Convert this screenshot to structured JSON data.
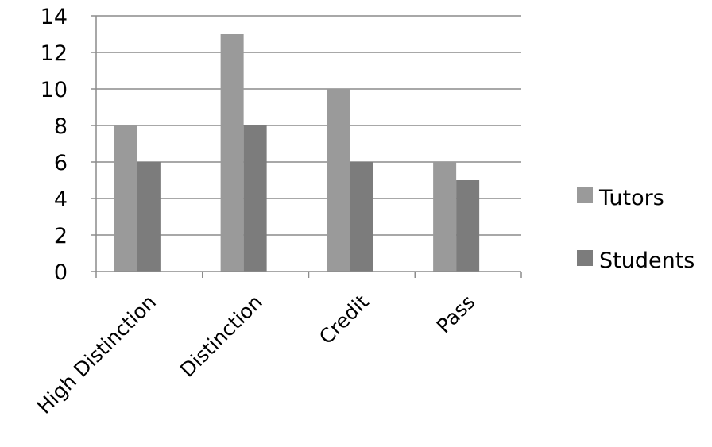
{
  "chart_data": {
    "type": "bar",
    "categories": [
      "High Distinction",
      "Distinction",
      "Credit",
      "Pass"
    ],
    "series": [
      {
        "name": "Tutors",
        "values": [
          8,
          13,
          10,
          6
        ],
        "color": "#9a9a9a"
      },
      {
        "name": "Students",
        "values": [
          6,
          8,
          6,
          5
        ],
        "color": "#7c7c7c"
      }
    ],
    "y_ticks": [
      "0",
      "2",
      "4",
      "6",
      "8",
      "10",
      "12",
      "14"
    ],
    "ylim": [
      0,
      14
    ],
    "grid": true,
    "gridline_color": "#8c8c8c",
    "legend_position": "right",
    "category_label_rotation": "45-degrees"
  }
}
